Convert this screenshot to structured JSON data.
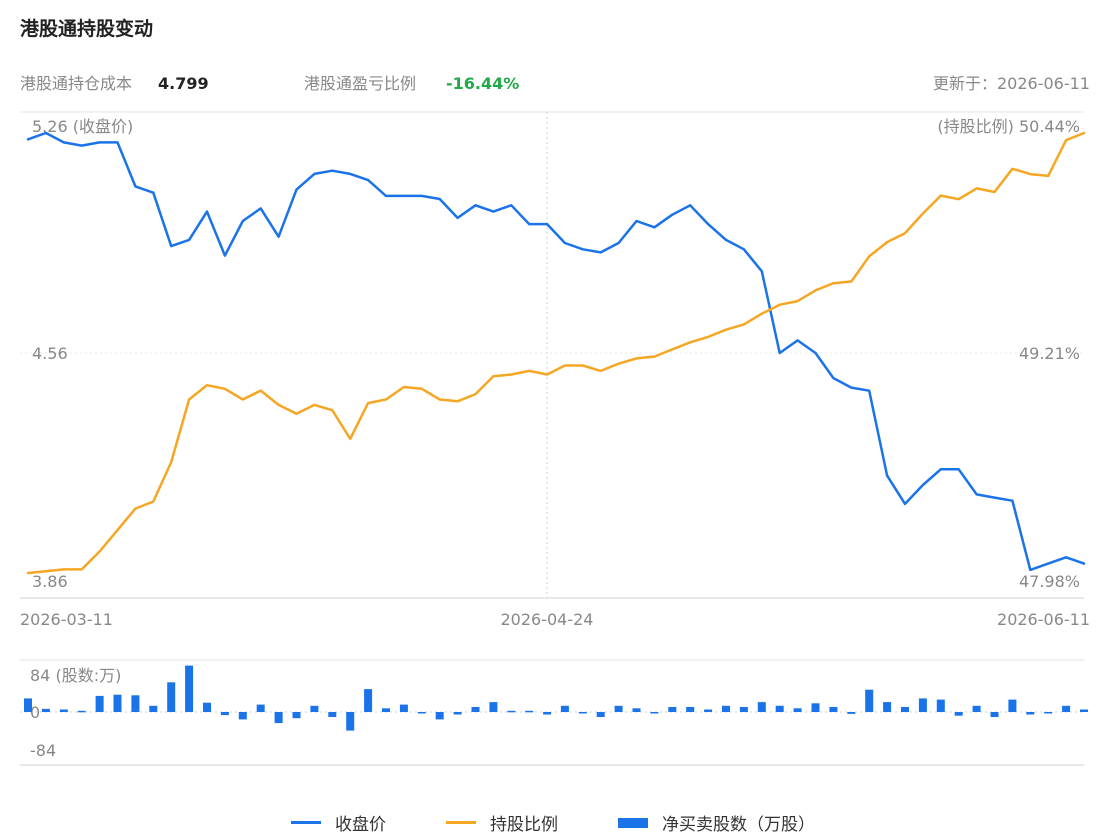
{
  "header": {
    "title": "港股通持股变动",
    "cost_label": "港股通持仓成本",
    "cost_value": "4.799",
    "pnl_label": "港股通盈亏比例",
    "pnl_value": "-16.44%",
    "updated": "更新于：2026-06-11"
  },
  "colors": {
    "price": "#1a73e8",
    "ratio": "#f5a623",
    "bars": "#1a73e8",
    "pnl": "#22a94a"
  },
  "chart_data": [
    {
      "type": "line",
      "x_labels": [
        "2026-03-11",
        "2026-04-24",
        "2026-06-11"
      ],
      "y_left": {
        "range": [
          3.86,
          5.26
        ],
        "ticks": [
          "5.26 (收盘价)",
          "4.56",
          "3.86"
        ]
      },
      "y_right": {
        "range": [
          47.98,
          50.44
        ],
        "ticks": [
          "(持股比例) 50.44%",
          "49.21%",
          "47.98%"
        ]
      },
      "series": [
        {
          "name": "收盘价",
          "axis": "left",
          "values": [
            5.24,
            5.26,
            5.23,
            5.22,
            5.23,
            5.23,
            5.09,
            5.07,
            4.9,
            4.92,
            5.01,
            4.87,
            4.98,
            5.02,
            4.93,
            5.08,
            5.13,
            5.14,
            5.13,
            5.11,
            5.06,
            5.06,
            5.06,
            5.05,
            4.99,
            5.03,
            5.01,
            5.03,
            4.97,
            4.97,
            4.91,
            4.89,
            4.88,
            4.91,
            4.98,
            4.96,
            5.0,
            5.03,
            4.97,
            4.92,
            4.89,
            4.82,
            4.56,
            4.6,
            4.56,
            4.48,
            4.45,
            4.44,
            4.17,
            4.08,
            4.14,
            4.19,
            4.19,
            4.11,
            4.1,
            4.09,
            3.87,
            3.89,
            3.91,
            3.89
          ]
        },
        {
          "name": "持股比例",
          "axis": "right",
          "values": [
            47.98,
            47.99,
            48.0,
            48.0,
            48.1,
            48.22,
            48.34,
            48.38,
            48.6,
            48.95,
            49.03,
            49.01,
            48.95,
            49.0,
            48.92,
            48.87,
            48.92,
            48.89,
            48.73,
            48.93,
            48.95,
            49.02,
            49.01,
            48.95,
            48.94,
            48.98,
            49.08,
            49.09,
            49.11,
            49.09,
            49.14,
            49.14,
            49.11,
            49.15,
            49.18,
            49.19,
            49.23,
            49.27,
            49.3,
            49.34,
            49.37,
            49.43,
            49.48,
            49.5,
            49.56,
            49.6,
            49.61,
            49.75,
            49.83,
            49.88,
            49.99,
            50.09,
            50.07,
            50.13,
            50.11,
            50.24,
            50.21,
            50.2,
            50.4,
            50.44
          ]
        }
      ]
    },
    {
      "type": "bar",
      "name": "净买卖股数（万股）",
      "unit": "股数:万",
      "ylim": [
        -84,
        84
      ],
      "ticks": [
        "84 (股数:万)",
        "0",
        "-84"
      ],
      "values": [
        22,
        5,
        4,
        2,
        26,
        28,
        27,
        10,
        48,
        75,
        15,
        -5,
        -12,
        12,
        -18,
        -10,
        10,
        -8,
        -30,
        37,
        6,
        12,
        0,
        -12,
        -4,
        8,
        16,
        2,
        2,
        -4,
        10,
        0,
        -8,
        10,
        6,
        0,
        8,
        8,
        4,
        10,
        8,
        16,
        10,
        6,
        14,
        8,
        -3,
        36,
        16,
        8,
        22,
        20,
        -6,
        10,
        -8,
        20,
        -4,
        -2,
        10,
        4
      ]
    }
  ],
  "legend": {
    "price": "收盘价",
    "ratio": "持股比例",
    "bars": "净买卖股数（万股）"
  }
}
